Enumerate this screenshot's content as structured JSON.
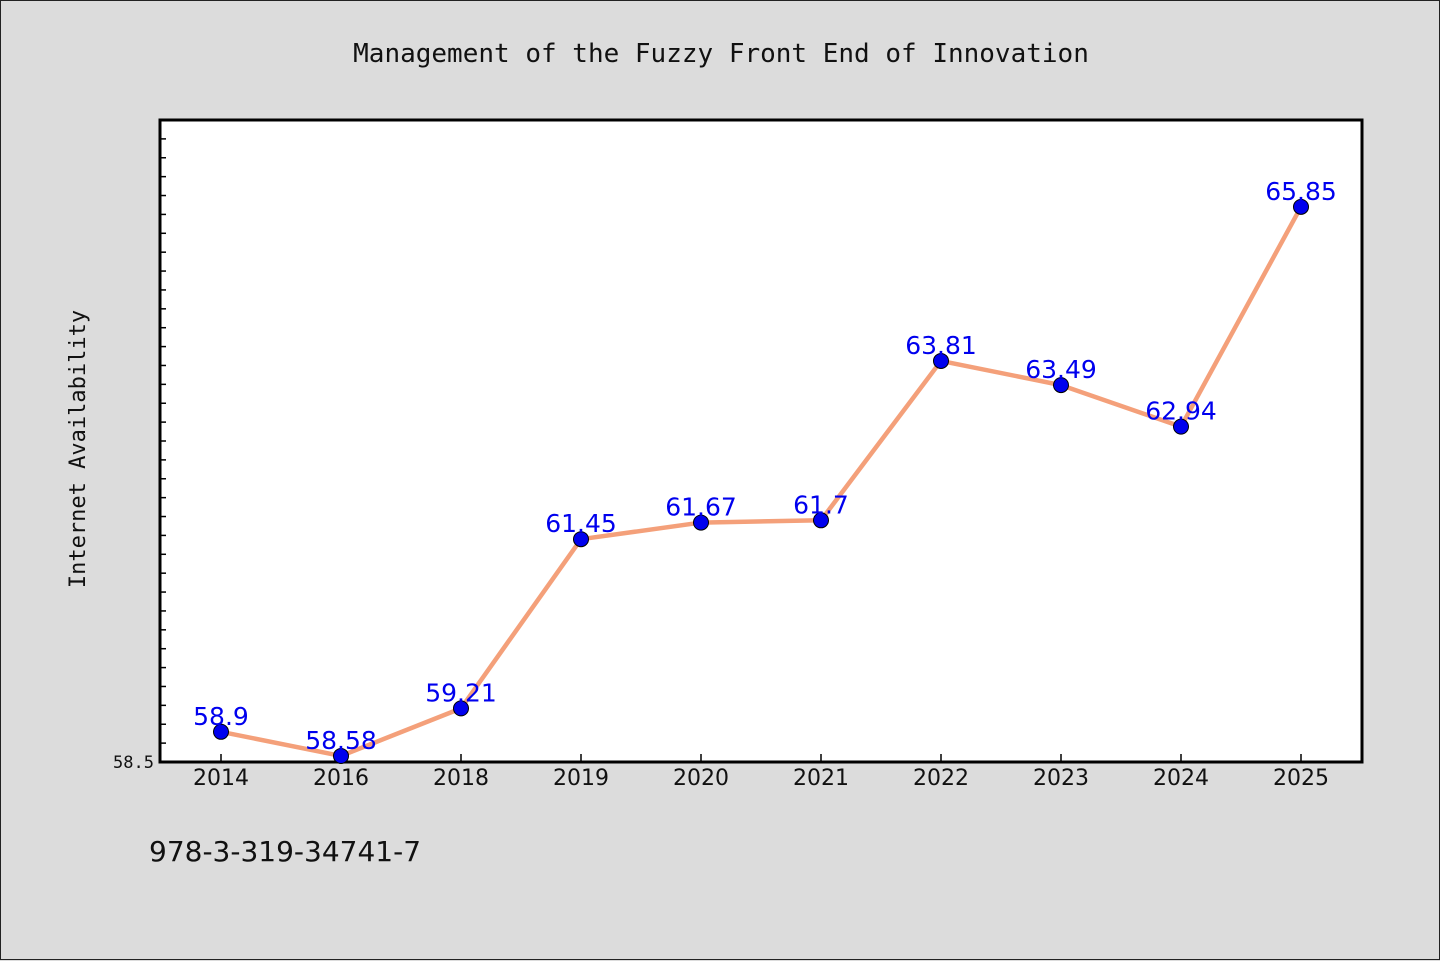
{
  "chart_data": {
    "type": "line",
    "title": "Management of the Fuzzy Front End of Innovation",
    "ylabel": "Internet Availability",
    "xlabel": "",
    "categories": [
      "2014",
      "2016",
      "2018",
      "2019",
      "2020",
      "2021",
      "2022",
      "2023",
      "2024",
      "2025"
    ],
    "series": [
      {
        "values": [
          58.9,
          58.58,
          59.21,
          61.45,
          61.67,
          61.7,
          63.81,
          63.49,
          62.94,
          65.85
        ],
        "labels": [
          "58.9",
          "58.58",
          "59.21",
          "61.45",
          "61.67",
          "61.7",
          "63.81",
          "63.49",
          "62.94",
          "65.85"
        ]
      }
    ],
    "yticks_labeled": [
      "58.5"
    ],
    "ylim": [
      58.5,
      67.0
    ],
    "grid": false,
    "legend": "none",
    "colors": {
      "line": "#f4a07a",
      "marker": "#0000ee",
      "label": "#0000ee",
      "plot_background": "#ffffff",
      "figure_background": "#dcdcdc"
    }
  },
  "footnote": "978-3-319-34741-7"
}
